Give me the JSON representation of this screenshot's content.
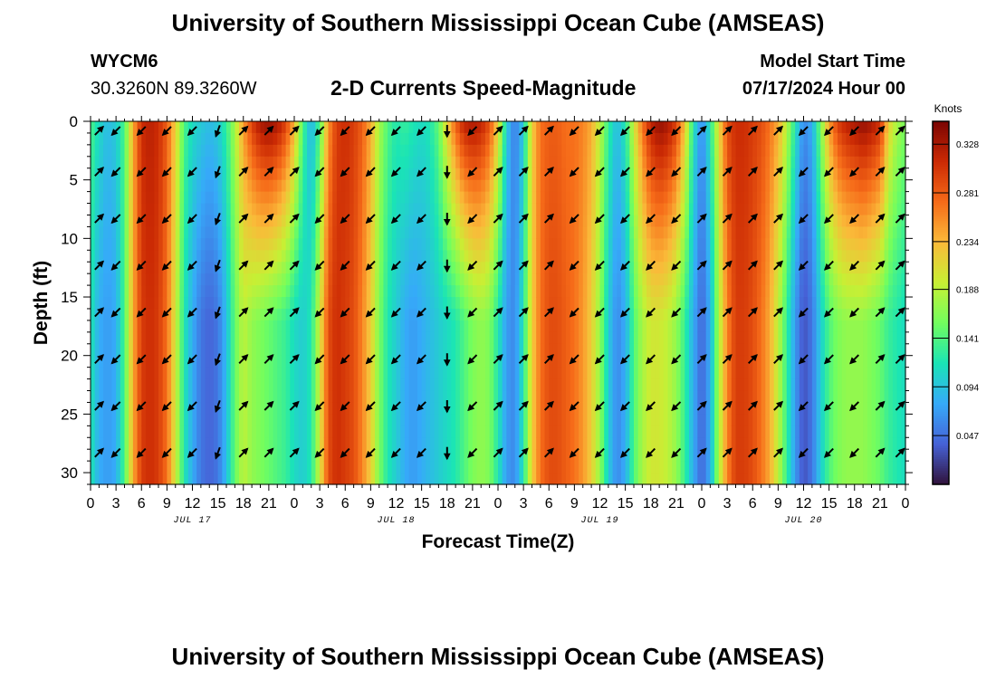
{
  "header": {
    "title": "University of Southern Mississippi Ocean Cube (AMSEAS)",
    "station": "WYCM6",
    "coords": "30.3260N  89.3260W",
    "subtitle": "2-D Currents Speed-Magnitude",
    "model_start_label": "Model Start Time",
    "model_start_value": "07/17/2024 Hour 00"
  },
  "footer": {
    "title": "University of Southern Mississippi Ocean Cube (AMSEAS)"
  },
  "chart_data": {
    "type": "heatmap",
    "title": "2-D Currents Speed-Magnitude",
    "xlabel": "Forecast Time(Z)",
    "ylabel": "Depth (ft)",
    "x_range_hours": [
      0,
      96
    ],
    "y_range_ft": [
      0,
      31
    ],
    "x_tick_hours": [
      0,
      3,
      6,
      9,
      12,
      15,
      18,
      21,
      24,
      27,
      30,
      33,
      36,
      39,
      42,
      45,
      48,
      51,
      54,
      57,
      60,
      63,
      66,
      69,
      72,
      75,
      78,
      81,
      84,
      87,
      90,
      93,
      96
    ],
    "x_tick_labels": [
      "0",
      "3",
      "6",
      "9",
      "12",
      "15",
      "18",
      "21",
      "0",
      "3",
      "6",
      "9",
      "12",
      "15",
      "18",
      "21",
      "0",
      "3",
      "6",
      "9",
      "12",
      "15",
      "18",
      "21",
      "0",
      "3",
      "6",
      "9",
      "12",
      "15",
      "18",
      "21",
      "0"
    ],
    "date_labels": [
      {
        "hour": 12,
        "text": "JUL 17"
      },
      {
        "hour": 36,
        "text": "JUL 18"
      },
      {
        "hour": 60,
        "text": "JUL 19"
      },
      {
        "hour": 84,
        "text": "JUL 20"
      }
    ],
    "y_ticks": [
      0,
      5,
      10,
      15,
      20,
      25,
      30
    ],
    "colorbar": {
      "label": "Knots",
      "min": 0.0,
      "max": 0.35,
      "ticks": [
        "0.328",
        "0.281",
        "0.234",
        "0.188",
        "0.141",
        "0.094",
        "0.047"
      ],
      "tick_values": [
        0.328,
        0.281,
        0.234,
        0.188,
        0.141,
        0.094,
        0.047
      ],
      "colormap": [
        "#30123b",
        "#4662d7",
        "#36aaf9",
        "#1ae4b6",
        "#72fe5e",
        "#c8ef34",
        "#faba39",
        "#f66b19",
        "#cb2a04",
        "#7a0403"
      ]
    },
    "speed_profile_hours": [
      0,
      1,
      2,
      3,
      4,
      5,
      6,
      7,
      8,
      9,
      10,
      11,
      12,
      13,
      14,
      15,
      16,
      17,
      18,
      19,
      20,
      21,
      22,
      23,
      24,
      25,
      26,
      27,
      28,
      29,
      30,
      31,
      32,
      33,
      34,
      35,
      36,
      37,
      38,
      39,
      40,
      41,
      42,
      43,
      44,
      45,
      46,
      47,
      48,
      49,
      50,
      51,
      52,
      53,
      54,
      55,
      56,
      57,
      58,
      59,
      60,
      61,
      62,
      63,
      64,
      65,
      66,
      67,
      68,
      69,
      70,
      71,
      72,
      73,
      74,
      75,
      76,
      77,
      78,
      79,
      80,
      81,
      82,
      83,
      84,
      85,
      86,
      87,
      88,
      89,
      90,
      91,
      92,
      93,
      93.5,
      94,
      95,
      96
    ],
    "speed_profile_surface_knots": [
      0.14,
      0.11,
      0.09,
      0.1,
      0.14,
      0.24,
      0.31,
      0.32,
      0.31,
      0.28,
      0.22,
      0.14,
      0.11,
      0.1,
      0.09,
      0.1,
      0.13,
      0.18,
      0.25,
      0.3,
      0.33,
      0.34,
      0.33,
      0.3,
      0.24,
      0.14,
      0.08,
      0.14,
      0.25,
      0.3,
      0.31,
      0.3,
      0.28,
      0.24,
      0.18,
      0.14,
      0.12,
      0.13,
      0.12,
      0.11,
      0.12,
      0.15,
      0.22,
      0.28,
      0.32,
      0.33,
      0.32,
      0.29,
      0.22,
      0.1,
      0.05,
      0.1,
      0.22,
      0.27,
      0.28,
      0.28,
      0.27,
      0.27,
      0.26,
      0.24,
      0.19,
      0.13,
      0.09,
      0.12,
      0.2,
      0.27,
      0.32,
      0.34,
      0.33,
      0.3,
      0.23,
      0.12,
      0.06,
      0.12,
      0.21,
      0.29,
      0.31,
      0.31,
      0.3,
      0.29,
      0.27,
      0.24,
      0.19,
      0.12,
      0.06,
      0.08,
      0.16,
      0.25,
      0.3,
      0.32,
      0.33,
      0.34,
      0.33,
      0.31,
      0.27,
      0.22,
      0.18,
      0.16
    ],
    "speed_profile_bottom_knots": [
      0.12,
      0.08,
      0.07,
      0.08,
      0.14,
      0.24,
      0.3,
      0.31,
      0.3,
      0.27,
      0.2,
      0.12,
      0.08,
      0.05,
      0.04,
      0.05,
      0.09,
      0.15,
      0.19,
      0.17,
      0.16,
      0.15,
      0.14,
      0.13,
      0.11,
      0.1,
      0.12,
      0.2,
      0.29,
      0.31,
      0.3,
      0.29,
      0.26,
      0.22,
      0.16,
      0.12,
      0.1,
      0.08,
      0.07,
      0.08,
      0.09,
      0.1,
      0.11,
      0.12,
      0.14,
      0.16,
      0.17,
      0.16,
      0.12,
      0.07,
      0.06,
      0.12,
      0.22,
      0.27,
      0.29,
      0.29,
      0.28,
      0.27,
      0.25,
      0.22,
      0.17,
      0.1,
      0.06,
      0.08,
      0.14,
      0.18,
      0.2,
      0.2,
      0.19,
      0.17,
      0.13,
      0.08,
      0.04,
      0.08,
      0.18,
      0.26,
      0.3,
      0.3,
      0.29,
      0.27,
      0.24,
      0.19,
      0.13,
      0.07,
      0.03,
      0.05,
      0.1,
      0.14,
      0.16,
      0.17,
      0.17,
      0.17,
      0.16,
      0.15,
      0.14,
      0.13,
      0.12,
      0.11
    ],
    "arrow_hours": [
      1,
      3,
      6,
      9,
      12,
      15,
      18,
      21,
      24,
      27,
      30,
      33,
      36,
      39,
      42,
      45,
      48,
      51,
      54,
      57,
      60,
      63,
      66,
      69,
      72,
      75,
      78,
      81,
      84,
      87,
      90,
      93,
      96
    ],
    "arrow_depths_ft": [
      0.5,
      4,
      8,
      12,
      16,
      20,
      24,
      28
    ],
    "arrow_direction_deg_by_hour": {
      "1": 45,
      "3": 225,
      "6": 225,
      "9": 225,
      "12": 225,
      "15": 200,
      "18": 45,
      "21": 45,
      "24": 45,
      "27": 225,
      "30": 225,
      "33": 225,
      "36": 225,
      "39": 225,
      "42": 180,
      "45": 225,
      "48": 45,
      "51": 45,
      "54": 45,
      "57": 225,
      "60": 225,
      "63": 225,
      "66": 225,
      "69": 225,
      "72": 45,
      "75": 45,
      "78": 45,
      "81": 45,
      "84": 225,
      "87": 225,
      "90": 225,
      "93": 45,
      "96": 45
    }
  }
}
